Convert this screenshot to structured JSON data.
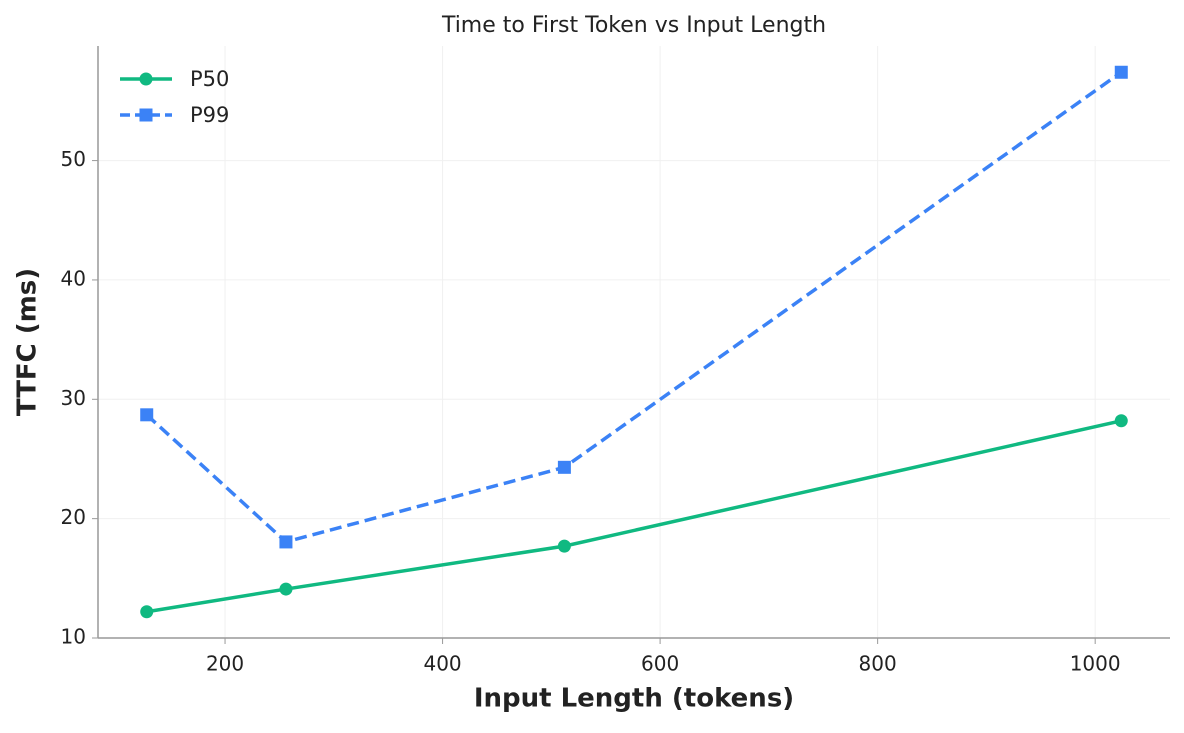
{
  "chart_data": {
    "type": "line",
    "title": "Time to First Token vs Input Length",
    "x_label": "Input Length (tokens)",
    "y_label": "TTFC (ms)",
    "x": [
      128,
      256,
      512,
      1024
    ],
    "series": [
      {
        "name": "P50",
        "color": "#10b981",
        "dash": "solid",
        "marker": "circle",
        "values": [
          12.2,
          14.1,
          17.7,
          28.2
        ]
      },
      {
        "name": "P99",
        "color": "#3b82f6",
        "dash": "dashed",
        "marker": "square",
        "values": [
          28.7,
          18.05,
          24.3,
          57.4
        ]
      }
    ],
    "xlim": [
      83.2,
      1068.8
    ],
    "xticks": [
      200,
      400,
      600,
      800,
      1000
    ],
    "ylim": [
      10,
      59.6
    ],
    "yticks": [
      10,
      20,
      30,
      40,
      50
    ],
    "grid": true,
    "legend": "upper-left"
  }
}
